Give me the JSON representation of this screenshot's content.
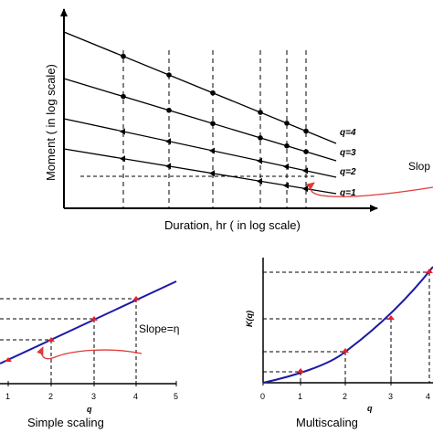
{
  "top_panel": {
    "ylabel": "Moment ( in log scale)",
    "xlabel": "Duration, hr ( in log scale)",
    "line_labels": [
      "q=4",
      "q=3",
      "q=2",
      "q=1"
    ],
    "slope_label": "Slop"
  },
  "left_panel": {
    "slope_label": "Slope=η",
    "xlabel": "q",
    "xticks": [
      "1",
      "2",
      "3",
      "4",
      "5"
    ],
    "title": "Simple scaling"
  },
  "right_panel": {
    "ylabel": "K(q)",
    "xlabel": "q",
    "xticks": [
      "0",
      "1",
      "2",
      "3",
      "4"
    ],
    "title": "Multiscaling"
  },
  "colors": {
    "axes": "#000000",
    "curve": "#1a1aa6",
    "marker": "#e8202a",
    "annotation": "#e03a3a"
  }
}
